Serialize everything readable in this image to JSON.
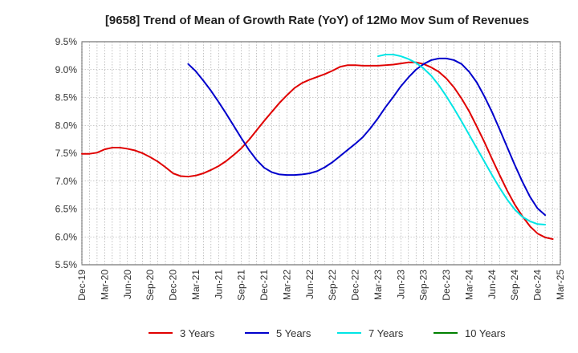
{
  "chart_data": {
    "type": "line",
    "title": "[9658]  Trend of Mean of Growth Rate (YoY) of 12Mo Mov Sum of Revenues",
    "xlabel": "",
    "ylabel": "",
    "y_ticks": [
      "5.5%",
      "6.0%",
      "6.5%",
      "7.0%",
      "7.5%",
      "8.0%",
      "8.5%",
      "9.0%",
      "9.5%"
    ],
    "ylim": [
      5.5,
      9.5
    ],
    "x_ticks": [
      "Dec-19",
      "Mar-20",
      "Jun-20",
      "Sep-20",
      "Dec-20",
      "Mar-21",
      "Jun-21",
      "Sep-21",
      "Dec-21",
      "Mar-22",
      "Jun-22",
      "Sep-22",
      "Dec-22",
      "Mar-23",
      "Jun-23",
      "Sep-23",
      "Dec-23",
      "Mar-24",
      "Jun-24",
      "Sep-24",
      "Dec-24",
      "Mar-25"
    ],
    "grid": true,
    "legend_position": "bottom",
    "series": [
      {
        "name": "3 Years",
        "color": "#e00000",
        "points": [
          [
            0,
            7.49
          ],
          [
            1,
            7.49
          ],
          [
            2,
            7.51
          ],
          [
            3,
            7.57
          ],
          [
            4,
            7.6
          ],
          [
            5,
            7.6
          ],
          [
            6,
            7.58
          ],
          [
            7,
            7.55
          ],
          [
            8,
            7.5
          ],
          [
            9,
            7.43
          ],
          [
            10,
            7.35
          ],
          [
            11,
            7.25
          ],
          [
            12,
            7.14
          ],
          [
            13,
            7.09
          ],
          [
            14,
            7.08
          ],
          [
            15,
            7.1
          ],
          [
            16,
            7.14
          ],
          [
            17,
            7.2
          ],
          [
            18,
            7.27
          ],
          [
            19,
            7.36
          ],
          [
            20,
            7.47
          ],
          [
            21,
            7.59
          ],
          [
            22,
            7.74
          ],
          [
            23,
            7.91
          ],
          [
            24,
            8.08
          ],
          [
            25,
            8.24
          ],
          [
            26,
            8.4
          ],
          [
            27,
            8.54
          ],
          [
            28,
            8.67
          ],
          [
            29,
            8.76
          ],
          [
            30,
            8.82
          ],
          [
            31,
            8.87
          ],
          [
            32,
            8.92
          ],
          [
            33,
            8.98
          ],
          [
            34,
            9.05
          ],
          [
            35,
            9.08
          ],
          [
            36,
            9.08
          ],
          [
            37,
            9.07
          ],
          [
            38,
            9.07
          ],
          [
            39,
            9.07
          ],
          [
            40,
            9.08
          ],
          [
            41,
            9.09
          ],
          [
            42,
            9.11
          ],
          [
            43,
            9.13
          ],
          [
            44,
            9.13
          ],
          [
            45,
            9.1
          ],
          [
            46,
            9.04
          ],
          [
            47,
            8.96
          ],
          [
            48,
            8.84
          ],
          [
            49,
            8.68
          ],
          [
            50,
            8.48
          ],
          [
            51,
            8.25
          ],
          [
            52,
            7.98
          ],
          [
            53,
            7.7
          ],
          [
            54,
            7.4
          ],
          [
            55,
            7.11
          ],
          [
            56,
            6.83
          ],
          [
            57,
            6.58
          ],
          [
            58,
            6.37
          ],
          [
            59,
            6.19
          ],
          [
            60,
            6.06
          ],
          [
            61,
            5.99
          ],
          [
            62,
            5.96
          ]
        ]
      },
      {
        "name": "5 Years",
        "color": "#0000cc",
        "points": [
          [
            14,
            9.1
          ],
          [
            15,
            8.97
          ],
          [
            16,
            8.8
          ],
          [
            17,
            8.62
          ],
          [
            18,
            8.42
          ],
          [
            19,
            8.21
          ],
          [
            20,
            7.99
          ],
          [
            21,
            7.77
          ],
          [
            22,
            7.56
          ],
          [
            23,
            7.38
          ],
          [
            24,
            7.24
          ],
          [
            25,
            7.16
          ],
          [
            26,
            7.12
          ],
          [
            27,
            7.11
          ],
          [
            28,
            7.11
          ],
          [
            29,
            7.12
          ],
          [
            30,
            7.14
          ],
          [
            31,
            7.18
          ],
          [
            32,
            7.25
          ],
          [
            33,
            7.34
          ],
          [
            34,
            7.45
          ],
          [
            35,
            7.56
          ],
          [
            36,
            7.67
          ],
          [
            37,
            7.79
          ],
          [
            38,
            7.95
          ],
          [
            39,
            8.13
          ],
          [
            40,
            8.33
          ],
          [
            41,
            8.51
          ],
          [
            42,
            8.7
          ],
          [
            43,
            8.86
          ],
          [
            44,
            9.0
          ],
          [
            45,
            9.1
          ],
          [
            46,
            9.17
          ],
          [
            47,
            9.2
          ],
          [
            48,
            9.2
          ],
          [
            49,
            9.17
          ],
          [
            50,
            9.1
          ],
          [
            51,
            8.96
          ],
          [
            52,
            8.77
          ],
          [
            53,
            8.52
          ],
          [
            54,
            8.24
          ],
          [
            55,
            7.93
          ],
          [
            56,
            7.61
          ],
          [
            57,
            7.29
          ],
          [
            58,
            6.99
          ],
          [
            59,
            6.72
          ],
          [
            60,
            6.51
          ],
          [
            61,
            6.39
          ]
        ]
      },
      {
        "name": "7 Years",
        "color": "#00e5e5",
        "points": [
          [
            39,
            9.24
          ],
          [
            40,
            9.27
          ],
          [
            41,
            9.27
          ],
          [
            42,
            9.24
          ],
          [
            43,
            9.19
          ],
          [
            44,
            9.12
          ],
          [
            45,
            9.02
          ],
          [
            46,
            8.89
          ],
          [
            47,
            8.72
          ],
          [
            48,
            8.52
          ],
          [
            49,
            8.3
          ],
          [
            50,
            8.07
          ],
          [
            51,
            7.83
          ],
          [
            52,
            7.59
          ],
          [
            53,
            7.35
          ],
          [
            54,
            7.11
          ],
          [
            55,
            6.88
          ],
          [
            56,
            6.67
          ],
          [
            57,
            6.49
          ],
          [
            58,
            6.36
          ],
          [
            59,
            6.28
          ],
          [
            60,
            6.23
          ],
          [
            61,
            6.22
          ]
        ]
      },
      {
        "name": "10 Years",
        "color": "#008000",
        "points": []
      }
    ]
  }
}
